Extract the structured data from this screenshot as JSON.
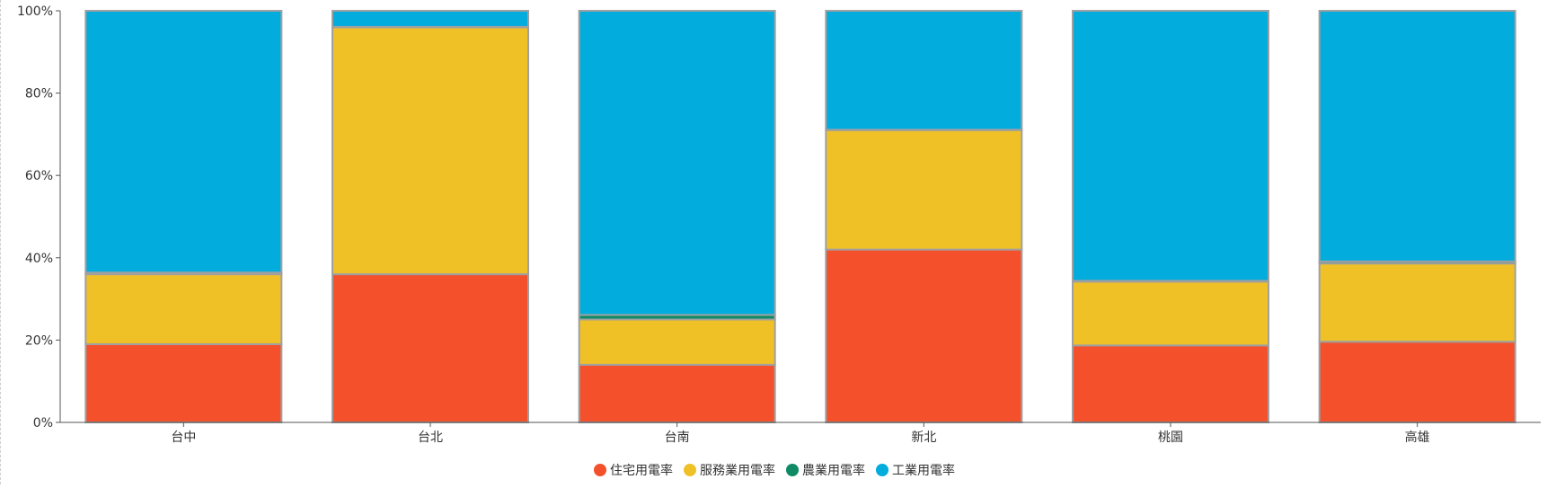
{
  "chart_data": {
    "type": "bar",
    "stacked": "percent",
    "categories": [
      "台中",
      "台北",
      "台南",
      "新北",
      "桃園",
      "高雄"
    ],
    "series": [
      {
        "name": "住宅用電率",
        "color": "#f4502c",
        "values": [
          19.0,
          36.0,
          14.0,
          42.0,
          18.7,
          19.6
        ]
      },
      {
        "name": "服務業用電率",
        "color": "#f0c127",
        "values": [
          17.0,
          60.0,
          11.0,
          29.0,
          15.5,
          19.0
        ]
      },
      {
        "name": "農業用電率",
        "color": "#0e8a65",
        "values": [
          0.4,
          0.1,
          1.1,
          0.1,
          0.2,
          0.5
        ]
      },
      {
        "name": "工業用電率",
        "color": "#02acdc",
        "values": [
          63.6,
          3.9,
          73.9,
          28.9,
          65.6,
          60.9
        ]
      }
    ],
    "y_ticks": [
      "0%",
      "20%",
      "40%",
      "60%",
      "80%",
      "100%"
    ],
    "ylim": [
      0,
      100
    ],
    "grid": false,
    "legend_position": "bottom-center",
    "title": "",
    "xlabel": "",
    "ylabel": ""
  }
}
